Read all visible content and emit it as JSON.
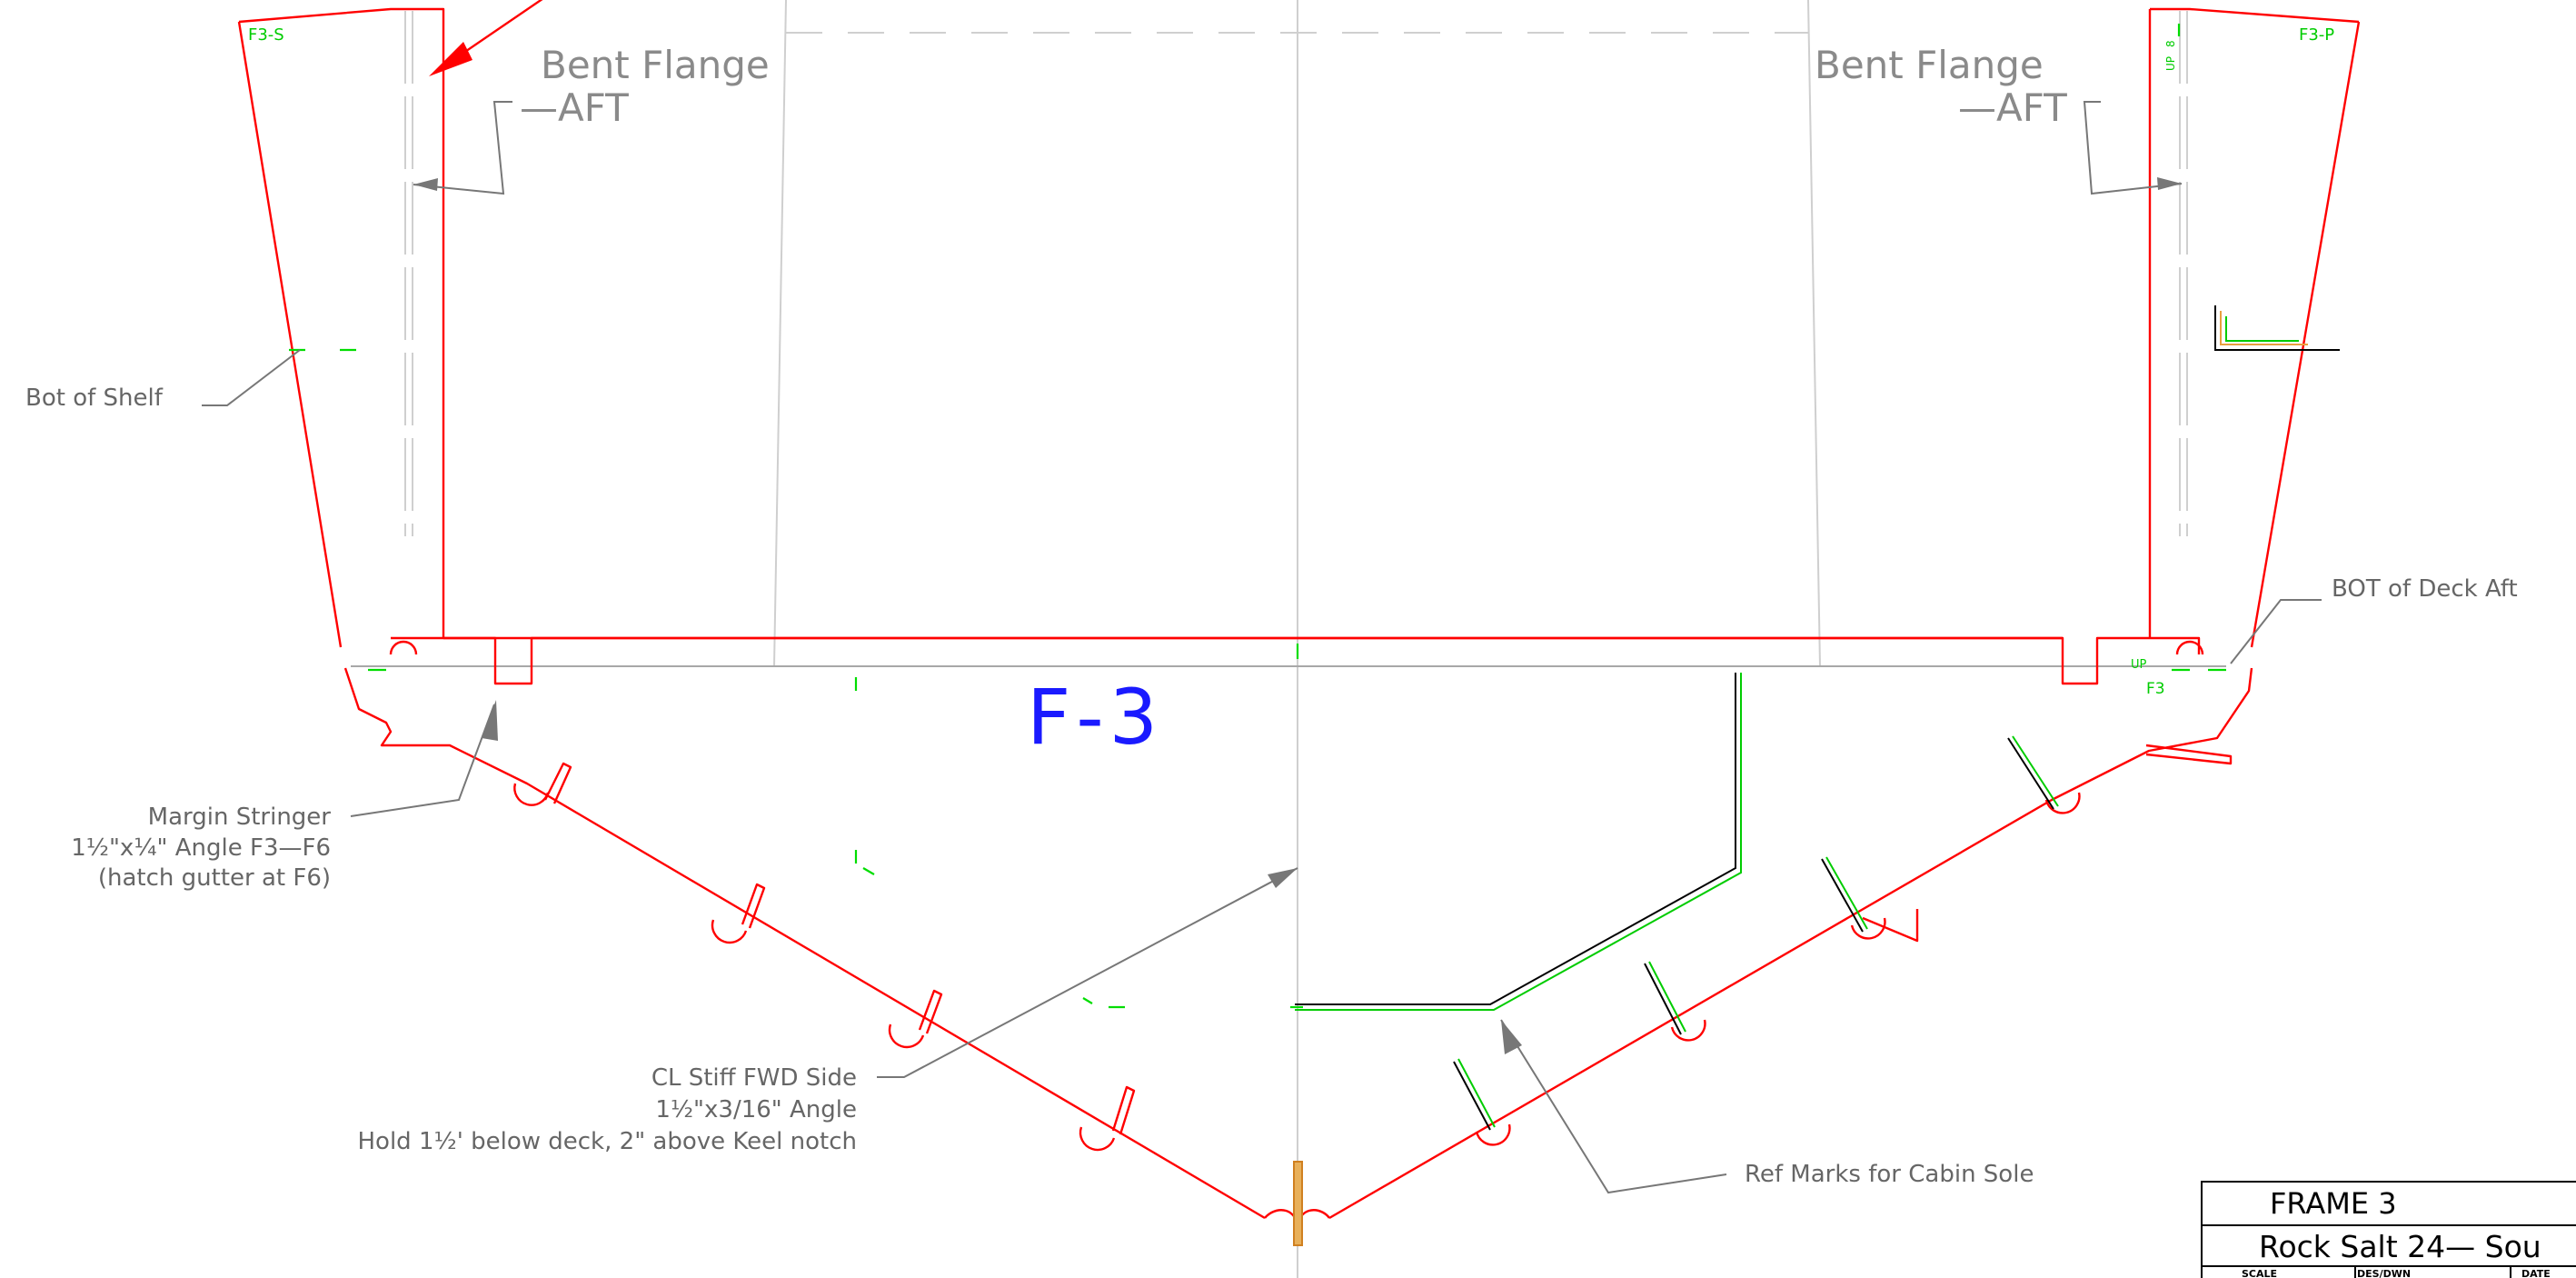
{
  "colors": {
    "frame": "#ff0000",
    "reference_mark": "#00dd00",
    "leader": "#777777",
    "centerline": "#bdbdbd",
    "frame_id": "#1a1aff",
    "stiffener_fill": "#e8b05a",
    "arrow_red": "#ff0000"
  },
  "tags": {
    "stbd": "F3-S",
    "port": "F3-P",
    "up_small": "UP",
    "f3_small": "F3",
    "up_rot": "UP",
    "up_rot_b": "8"
  },
  "frame_label": "F-3",
  "annotations": {
    "bent_flange_left": {
      "line1": "Bent Flange",
      "line2": "—AFT"
    },
    "bent_flange_right": {
      "line1": "Bent Flange",
      "line2": "—AFT"
    },
    "bot_of_shelf": "Bot of Shelf",
    "bot_of_deck_aft": "BOT of Deck Aft",
    "margin_stringer": {
      "line1": "Margin Stringer",
      "line2": "1½\"x¼\" Angle F3—F6",
      "line3": "(hatch gutter at F6)"
    },
    "cl_stiff": {
      "line1": "CL Stiff FWD Side",
      "line2": "1½\"x3/16\" Angle",
      "line3": "Hold 1½' below deck, 2\" above Keel notch"
    },
    "ref_marks": "Ref Marks for Cabin Sole"
  },
  "title_block": {
    "title": "FRAME 3",
    "project": "Rock Salt 24— Sou",
    "scale_label": "SCALE",
    "des_dwn_label": "DES/DWN",
    "date_label": "DATE"
  }
}
